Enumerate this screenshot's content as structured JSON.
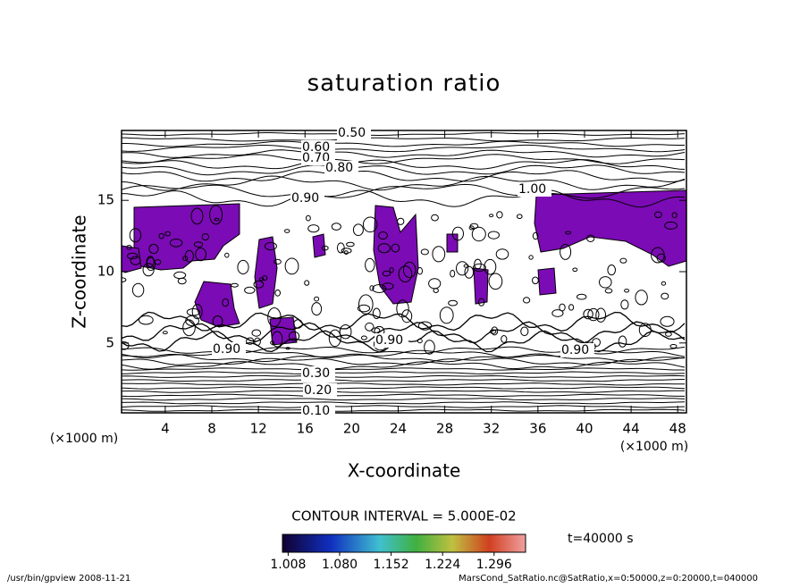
{
  "chart_data": {
    "type": "contour",
    "title": "saturation ratio",
    "xlabel": "X-coordinate",
    "ylabel": "Z-coordinate",
    "xunit": "(×1000 m)",
    "yunit": "(×1000 m)",
    "xlim": [
      0.25,
      48.75
    ],
    "ylim": [
      0.1,
      19.9
    ],
    "xticks": [
      4,
      8,
      12,
      16,
      20,
      24,
      28,
      32,
      36,
      40,
      44,
      48
    ],
    "yticks": [
      5,
      10,
      15
    ],
    "fill_color": "#7b0bb5",
    "contour_labels": [
      "0.50",
      "0.60",
      "0.70",
      "0.80",
      "0.90",
      "1.00",
      "0.90",
      "0.90",
      "0.90",
      "0.30",
      "0.20",
      "0.10"
    ],
    "contour_interval": "CONTOUR INTERVAL = 5.000E-02",
    "time": "t=40000 s",
    "colorbar": {
      "lim": [
        1.0,
        1.34
      ],
      "ticks": [
        {
          "value": 1.008,
          "label": "1.008"
        },
        {
          "value": 1.08,
          "label": "1.080"
        },
        {
          "value": 1.152,
          "label": "1.152"
        },
        {
          "value": 1.224,
          "label": "1.224"
        },
        {
          "value": 1.296,
          "label": "1.296"
        }
      ]
    },
    "footer_left": "/usr/bin/gpview  2008-11-21",
    "footer_right": "MarsCond_SatRatio.nc@SatRatio,x=0:50000,z=0:20000,t=040000"
  }
}
